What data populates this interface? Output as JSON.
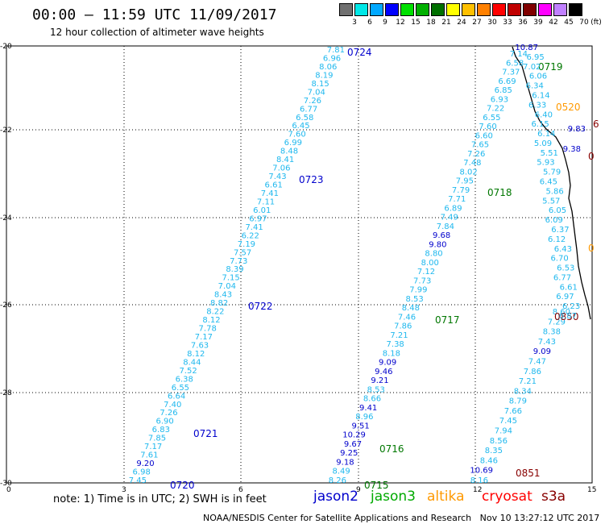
{
  "header": {
    "title": "00:00 – 11:59 UTC 11/09/2017",
    "subtitle": "12 hour collection of altimeter wave heights"
  },
  "colorbar": {
    "unit": "(ft)",
    "bins": [
      {
        "label": "3",
        "color": "#707070"
      },
      {
        "label": "6",
        "color": "#00e8e8"
      },
      {
        "label": "9",
        "color": "#00a8ff"
      },
      {
        "label": "12",
        "color": "#0000ff"
      },
      {
        "label": "15",
        "color": "#00e000"
      },
      {
        "label": "18",
        "color": "#00b000"
      },
      {
        "label": "21",
        "color": "#007000"
      },
      {
        "label": "24",
        "color": "#ffff00"
      },
      {
        "label": "27",
        "color": "#ffc000"
      },
      {
        "label": "30",
        "color": "#ff8000"
      },
      {
        "label": "33",
        "color": "#ff0000"
      },
      {
        "label": "36",
        "color": "#c00000"
      },
      {
        "label": "39",
        "color": "#800000"
      },
      {
        "label": "42",
        "color": "#ff00ff"
      },
      {
        "label": "45",
        "color": "#c080ff"
      },
      {
        "label": "70",
        "color": "#000000"
      }
    ]
  },
  "axes": {
    "x_ticks": [
      "0",
      "3",
      "6",
      "9",
      "12",
      "15"
    ],
    "y_ticks": [
      "-20",
      "-22",
      "-24",
      "-26",
      "-28",
      "-30"
    ]
  },
  "tracks": [
    {
      "time": "0724",
      "color": "#0000cc",
      "anchor": [
        431,
        61
      ],
      "line": {
        "start": [
          428,
          65
        ],
        "end": [
          182,
          599
        ]
      },
      "values": [
        "7.81",
        "6.96",
        "8.06",
        "8.19",
        "8.15",
        "7.04",
        "7.26",
        "6.77",
        "6.58",
        "6.45",
        "7.60",
        "6.99",
        "8.48",
        "8.41",
        "7.06",
        "7.43",
        "6.61",
        "7.41",
        "7.11",
        "6.01",
        "6.97",
        "7.41",
        "6.22",
        "7.19",
        "7.57",
        "7.73",
        "8.39",
        "7.15",
        "7.04",
        "8.43",
        "8.82",
        "8.22",
        "8.12",
        "7.78",
        "7.17",
        "7.63",
        "8.12",
        "8.44",
        "7.52",
        "6.38",
        "6.55",
        "6.64",
        "7.40",
        "7.26",
        "6.90",
        "6.83",
        "7.85",
        "7.17",
        "7.61",
        "9.20",
        "6.98",
        "7.45"
      ]
    },
    {
      "time": "0723",
      "color": "#0000cc",
      "anchor": [
        371,
        219
      ]
    },
    {
      "time": "0722",
      "color": "#0000cc",
      "anchor": [
        308,
        376
      ]
    },
    {
      "time": "0721",
      "color": "#0000cc",
      "anchor": [
        240,
        534
      ]
    },
    {
      "time": "0720",
      "color": "#0000cc",
      "anchor": [
        211,
        598
      ]
    },
    {
      "time": "0719",
      "color": "#007700",
      "anchor": [
        668,
        79
      ],
      "line": {
        "start": [
          655,
          70
        ],
        "end": [
          430,
          599
        ]
      },
      "values": [
        "7.14",
        "6.58",
        "7.37",
        "6.69",
        "6.85",
        "6.93",
        "7.22",
        "6.55",
        "7.60",
        "6.60",
        "7.65",
        "7.26",
        "7.48",
        "8.02",
        "7.95",
        "7.79",
        "7.71",
        "6.89",
        "7.49",
        "7.84",
        "9.68",
        "9.80",
        "8.80",
        "8.00",
        "7.12",
        "7.73",
        "7.99",
        "8.53",
        "8.48",
        "7.46",
        "7.86",
        "7.21",
        "7.38",
        "8.18",
        "9.09",
        "9.46",
        "9.21",
        "8.53",
        "8.66",
        "9.41",
        "8.96",
        "9.51",
        "10.29",
        "9.67",
        "9.25",
        "9.18",
        "8.49",
        "8.26"
      ]
    },
    {
      "time": "0718",
      "color": "#007700",
      "anchor": [
        605,
        235
      ]
    },
    {
      "time": "0717",
      "color": "#007700",
      "anchor": [
        540,
        393
      ]
    },
    {
      "time": "0716",
      "color": "#007700",
      "anchor": [
        471,
        553
      ]
    },
    {
      "time": "0715",
      "color": "#007700",
      "anchor": [
        452,
        598
      ]
    },
    {
      "time": "0520",
      "color": "#ff9900",
      "anchor": [
        690,
        129
      ]
    },
    {
      "time": "0850",
      "color": "#880000",
      "anchor": [
        688,
        389
      ],
      "line": {
        "start": [
          708,
          390
        ],
        "end": [
          606,
          599
        ]
      },
      "values": [
        "8.60",
        "7.29",
        "8.38",
        "7.43",
        "9.09",
        "7.47",
        "7.86",
        "7.21",
        "8.34",
        "8.79",
        "7.66",
        "7.45",
        "7.94",
        "8.56",
        "8.35",
        "8.46",
        "10.69",
        "8.16"
      ]
    },
    {
      "time": "0851",
      "color": "#880000",
      "anchor": [
        640,
        583
      ]
    }
  ],
  "coast_values": [
    "10.87",
    "6.95",
    "7.02",
    "6.06",
    "6.34",
    "6.14",
    "6.33",
    "6.40",
    "6.15",
    "6.14",
    "5.09",
    "5.51",
    "5.93",
    "5.79",
    "6.45",
    "5.86",
    "5.57",
    "6.05",
    "6.09",
    "6.37",
    "6.12",
    "6.43",
    "6.70",
    "6.53",
    "6.77",
    "6.61",
    "6.97",
    "6.23",
    "6.87"
  ],
  "coast_blue": [
    "9.83",
    "9.38"
  ],
  "right_edge": [
    {
      "text": "0",
      "color": "#ff9900",
      "pos": [
        730,
        312
      ]
    },
    {
      "text": "6",
      "color": "#880000",
      "pos": [
        736,
        158
      ]
    },
    {
      "text": "0",
      "color": "#880000",
      "pos": [
        730,
        198
      ]
    }
  ],
  "footer": {
    "note": "note: 1) Time is in UTC; 2) SWH is in feet",
    "legend": [
      {
        "label": "jason2",
        "color": "#0000cc"
      },
      {
        "label": "jason3",
        "color": "#00aa00"
      },
      {
        "label": "altika",
        "color": "#ff9900"
      },
      {
        "label": "cryosat",
        "color": "#ff0000"
      },
      {
        "label": "s3a",
        "color": "#880000"
      }
    ],
    "credit_org": "NOAA/NESDIS Center for Satellite Applications and Research",
    "credit_time": "Nov 10 13:27:12 UTC 2017"
  }
}
